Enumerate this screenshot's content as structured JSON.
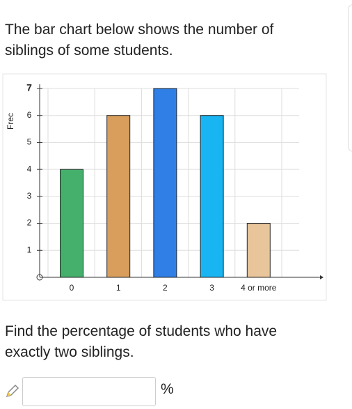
{
  "question": {
    "intro": [
      "The bar chart below shows the number of",
      "siblings of some students."
    ],
    "prompt": [
      "Find the percentage of students who have",
      "exactly two siblings."
    ],
    "unit": "%"
  },
  "chart_data": {
    "type": "bar",
    "y_label": "Frec",
    "categories": [
      "0",
      "1",
      "2",
      "3",
      "4 or more"
    ],
    "values": [
      4,
      6,
      7,
      6,
      2
    ],
    "colors": [
      "#45b06b",
      "#d99e5c",
      "#2f7fe6",
      "#18b5f2",
      "#e9c59b"
    ],
    "ylim": [
      0,
      7
    ],
    "yticks": [
      1,
      2,
      3,
      4,
      5,
      6,
      7
    ],
    "grid": true
  }
}
